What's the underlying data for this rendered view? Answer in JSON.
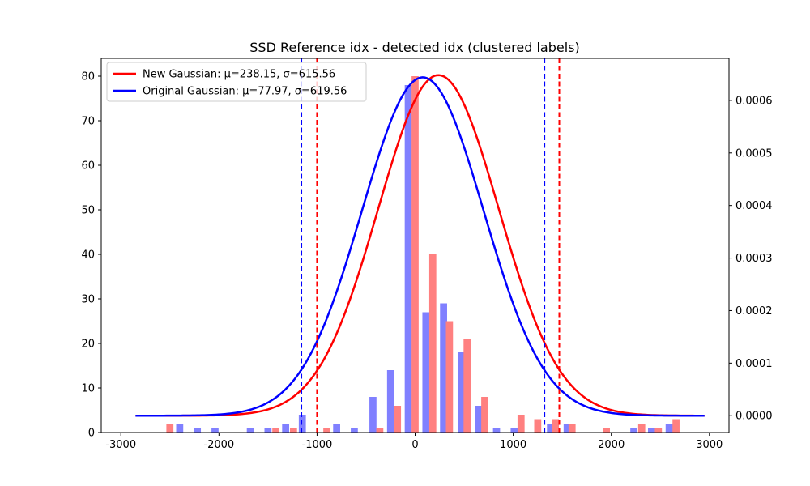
{
  "chart_data": {
    "type": "bar",
    "title": "SSD Reference idx - detected idx (clustered labels)",
    "xlabel": "",
    "ylabel": "",
    "xlim": [
      -3200,
      3200
    ],
    "ylim": [
      0,
      84
    ],
    "y2lim": [
      -3.2e-05,
      0.00068
    ],
    "x_ticks": [
      -3000,
      -2000,
      -1000,
      0,
      1000,
      2000,
      3000
    ],
    "y_ticks": [
      0,
      10,
      20,
      30,
      40,
      50,
      60,
      70,
      80
    ],
    "y2_ticks": [
      0.0,
      0.0001,
      0.0002,
      0.0003,
      0.0004,
      0.0005,
      0.0006
    ],
    "y2_tick_labels": [
      "0.0000",
      "0.0001",
      "0.0002",
      "0.0003",
      "0.0004",
      "0.0005",
      "0.0006"
    ],
    "grid": false,
    "legend_position": "top-left",
    "series": [
      {
        "kind": "bar",
        "color": "#8080ff",
        "x": [
          -2400,
          -2220,
          -2040,
          -1680,
          -1500,
          -1320,
          -1150,
          -800,
          -620,
          -430,
          -250,
          -70,
          110,
          290,
          470,
          650,
          830,
          1010,
          1380,
          1550,
          2230,
          2410,
          2590
        ],
        "values": [
          2,
          1,
          1,
          1,
          1,
          2,
          4,
          2,
          1,
          8,
          14,
          78,
          27,
          29,
          18,
          6,
          1,
          1,
          2,
          2,
          1,
          1,
          2
        ]
      },
      {
        "kind": "bar",
        "color": "#ff8080",
        "x": [
          -2500,
          -1420,
          -1240,
          -900,
          -360,
          -180,
          0,
          180,
          350,
          530,
          710,
          1080,
          1250,
          1430,
          1600,
          1950,
          2310,
          2480,
          2660
        ],
        "values": [
          2,
          1,
          1,
          1,
          1,
          6,
          80,
          40,
          25,
          21,
          8,
          4,
          3,
          3,
          2,
          1,
          2,
          1,
          3
        ]
      },
      {
        "kind": "gaussian",
        "name": "New Gaussian: μ=238.15, σ=615.56",
        "color": "#ff0000",
        "mu": 238.15,
        "sigma": 615.56,
        "x_range": [
          -2850,
          2950
        ]
      },
      {
        "kind": "gaussian",
        "name": "Original Gaussian: μ=77.97, σ=619.56",
        "color": "#0000ff",
        "mu": 77.97,
        "sigma": 619.56,
        "x_range": [
          -2850,
          2950
        ]
      }
    ],
    "vlines": [
      {
        "x": -1160,
        "color": "#0000ff"
      },
      {
        "x": 1318,
        "color": "#0000ff"
      },
      {
        "x": -1000,
        "color": "#ff0000"
      },
      {
        "x": 1470,
        "color": "#ff0000"
      }
    ]
  }
}
